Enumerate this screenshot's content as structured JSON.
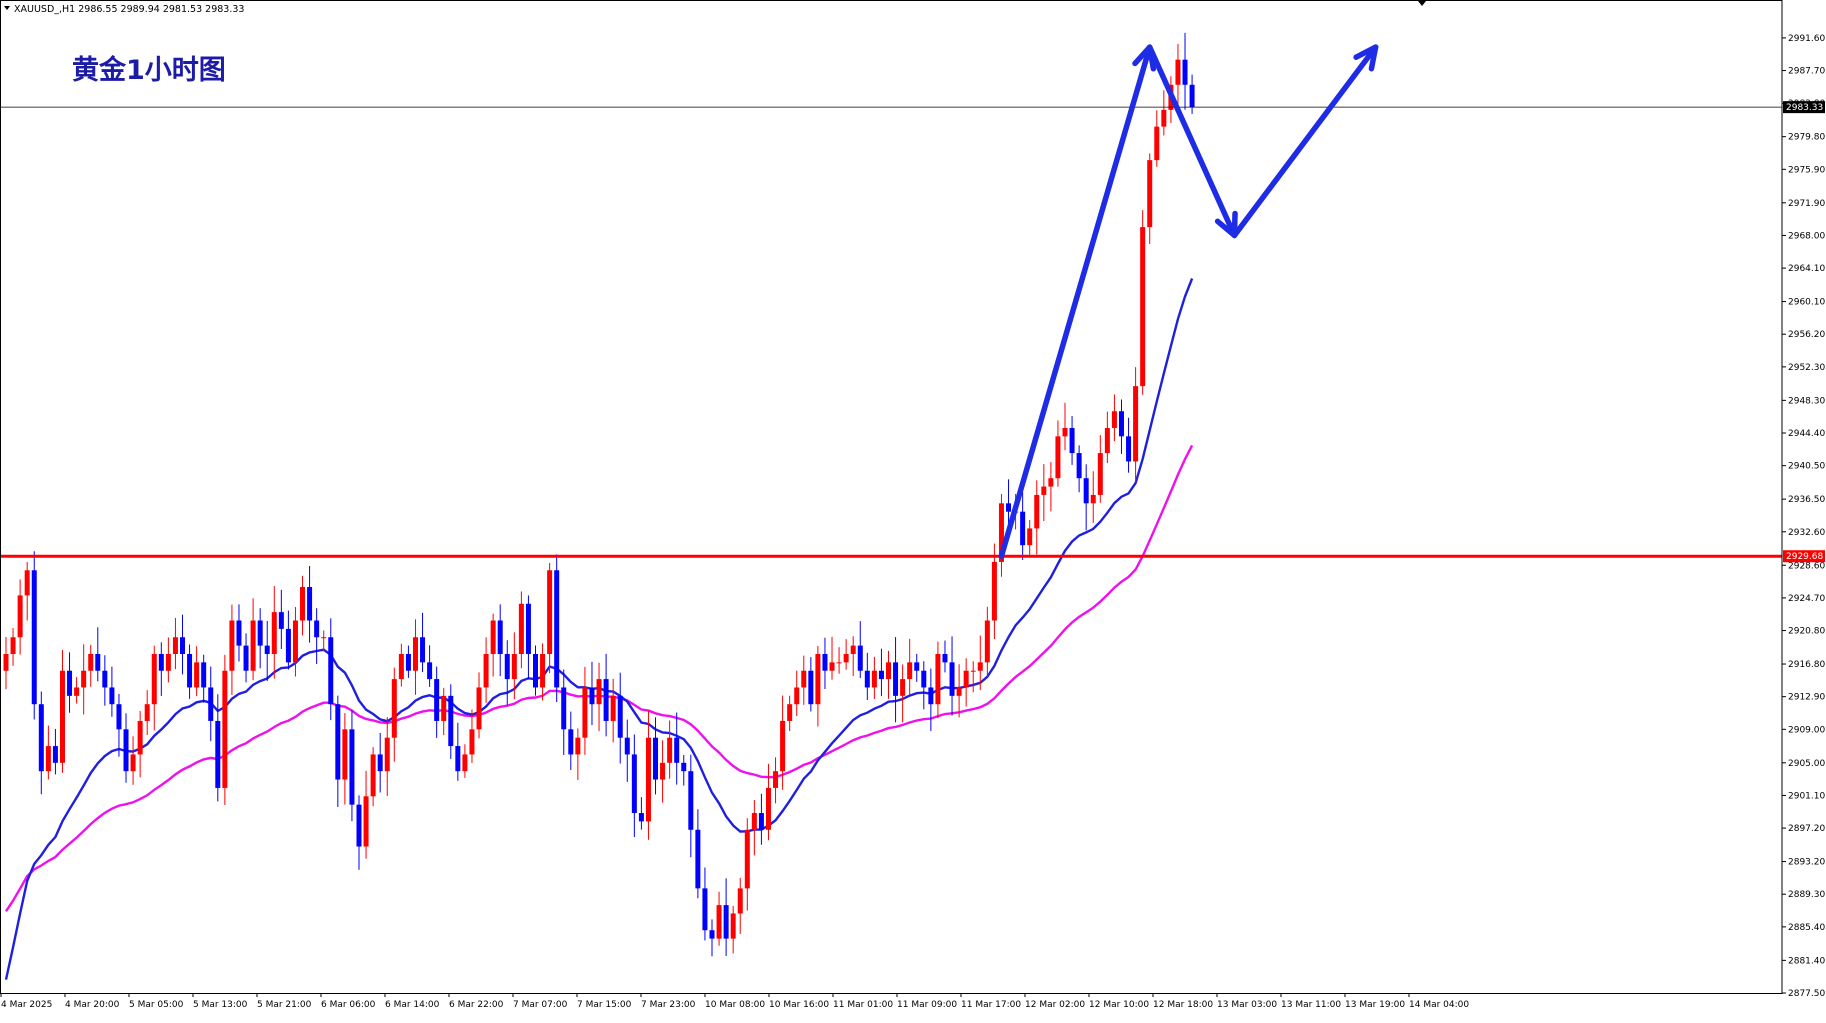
{
  "header": {
    "symbol_info": "XAUUSD_,H1  2986.55 2989.94 2981.53 2983.33",
    "title": "黄金1小时图"
  },
  "colors": {
    "bull": "#ff0000",
    "bear": "#0000ff",
    "ma_fast": "#1f1fe0",
    "ma_slow": "#ee11ee",
    "support": "#ff0000",
    "arrow": "#1f2ce6"
  },
  "chart_data": {
    "type": "candlestick",
    "symbol": "XAUUSD_",
    "timeframe": "H1",
    "ylim": [
      2877.5,
      2993.5
    ],
    "y_ticks": [
      "2991.60",
      "2987.70",
      "2983.80",
      "2979.80",
      "2975.90",
      "2971.90",
      "2968.00",
      "2964.10",
      "2960.10",
      "2956.20",
      "2952.30",
      "2948.30",
      "2944.40",
      "2940.50",
      "2936.50",
      "2932.60",
      "2928.60",
      "2924.70",
      "2920.80",
      "2916.80",
      "2912.90",
      "2909.00",
      "2905.00",
      "2901.10",
      "2897.20",
      "2893.20",
      "2889.30",
      "2885.40",
      "2881.40",
      "2877.50"
    ],
    "x_ticks": [
      "4 Mar 2025",
      "4 Mar 20:00",
      "5 Mar 05:00",
      "5 Mar 13:00",
      "5 Mar 21:00",
      "6 Mar 06:00",
      "6 Mar 14:00",
      "6 Mar 22:00",
      "7 Mar 07:00",
      "7 Mar 15:00",
      "7 Mar 23:00",
      "10 Mar 08:00",
      "10 Mar 16:00",
      "11 Mar 01:00",
      "11 Mar 09:00",
      "11 Mar 17:00",
      "12 Mar 02:00",
      "12 Mar 10:00",
      "12 Mar 18:00",
      "13 Mar 03:00",
      "13 Mar 11:00",
      "13 Mar 19:00",
      "14 Mar 04:00"
    ],
    "current_price": {
      "value": 2983.33,
      "label": "2983.33"
    },
    "support_line": {
      "value": 2929.68,
      "label": "2929.68"
    },
    "ohlc_latest": {
      "open": 2986.55,
      "high": 2989.94,
      "low": 2981.53,
      "close": 2983.33
    },
    "closes": [
      2918,
      2920,
      2925,
      2928,
      2912,
      2904,
      2907,
      2905,
      2916,
      2913,
      2914,
      2916,
      2918,
      2916,
      2914,
      2912,
      2909,
      2904,
      2906,
      2910,
      2912,
      2918,
      2916,
      2918,
      2920,
      2918,
      2914,
      2917,
      2914,
      2910,
      2902,
      2916,
      2922,
      2919,
      2916,
      2922,
      2919,
      2918,
      2923,
      2921,
      2917,
      2922,
      2926,
      2922,
      2920,
      2920,
      2912,
      2903,
      2909,
      2900,
      2895,
      2901,
      2906,
      2904,
      2908,
      2915,
      2918,
      2916,
      2920,
      2917,
      2915,
      2910,
      2913,
      2907,
      2904,
      2906,
      2909,
      2914,
      2918,
      2922,
      2918,
      2915,
      2918,
      2924,
      2918,
      2914,
      2918,
      2928,
      2914,
      2909,
      2906,
      2908,
      2914,
      2912,
      2915,
      2910,
      2913,
      2908,
      2906,
      2899,
      2898,
      2908,
      2903,
      2905,
      2908,
      2905,
      2904,
      2897,
      2890,
      2885,
      2884,
      2888,
      2884,
      2887,
      2890,
      2897,
      2899,
      2897,
      2902,
      2904,
      2910,
      2912,
      2914,
      2916,
      2912,
      2918,
      2916,
      2917,
      2917,
      2918,
      2919,
      2916,
      2914,
      2916,
      2915,
      2917,
      2913,
      2915,
      2917,
      2916,
      2914,
      2912,
      2918,
      2917,
      2913,
      2914,
      2916,
      2916,
      2917,
      2922,
      2929,
      2936,
      2935,
      2935,
      2931,
      2933,
      2937,
      2938,
      2939,
      2944,
      2945,
      2942,
      2939,
      2936,
      2937,
      2942,
      2945,
      2947,
      2944,
      2941,
      2950,
      2969,
      2977,
      2981,
      2983,
      2986,
      2989,
      2986,
      2983.33
    ],
    "series": [
      {
        "name": "MA fast",
        "color": "#1f1fe0"
      },
      {
        "name": "MA slow",
        "color": "#ee11ee"
      }
    ],
    "annotations": [
      {
        "type": "arrow-path",
        "points": [
          [
            141,
            2929.7
          ],
          [
            162,
            2990.5
          ],
          [
            174,
            2968.0
          ],
          [
            194,
            2990.5
          ]
        ]
      }
    ]
  }
}
